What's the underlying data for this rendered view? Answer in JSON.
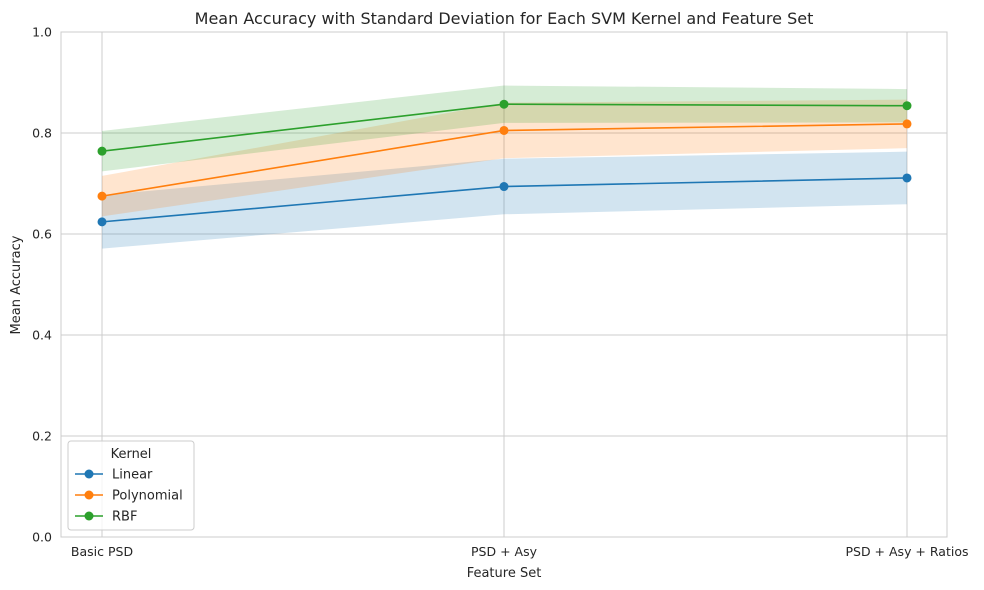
{
  "chart_data": {
    "type": "line",
    "title": "Mean Accuracy with Standard Deviation for Each SVM Kernel and Feature Set",
    "xlabel": "Feature Set",
    "ylabel": "Mean Accuracy",
    "categories": [
      "Basic PSD",
      "PSD + Asy",
      "PSD + Asy + Ratios"
    ],
    "ylim": [
      0,
      1.0
    ],
    "yticks": [
      0.0,
      0.2,
      0.4,
      0.6,
      0.8,
      1.0
    ],
    "ytick_labels": [
      "0.0",
      "0.2",
      "0.4",
      "0.6",
      "0.8",
      "1.0"
    ],
    "grid": true,
    "legend": {
      "title": "Kernel",
      "placement": "lower-left"
    },
    "series": [
      {
        "name": "Linear",
        "color": "#1f77b4",
        "values": [
          0.624,
          0.694,
          0.711
        ],
        "std": [
          0.053,
          0.055,
          0.052
        ]
      },
      {
        "name": "Polynomial",
        "color": "#ff7f0e",
        "values": [
          0.675,
          0.805,
          0.818
        ],
        "std": [
          0.04,
          0.055,
          0.048
        ]
      },
      {
        "name": "RBF",
        "color": "#2ca02c",
        "values": [
          0.764,
          0.857,
          0.854
        ],
        "std": [
          0.04,
          0.037,
          0.033
        ]
      }
    ]
  }
}
